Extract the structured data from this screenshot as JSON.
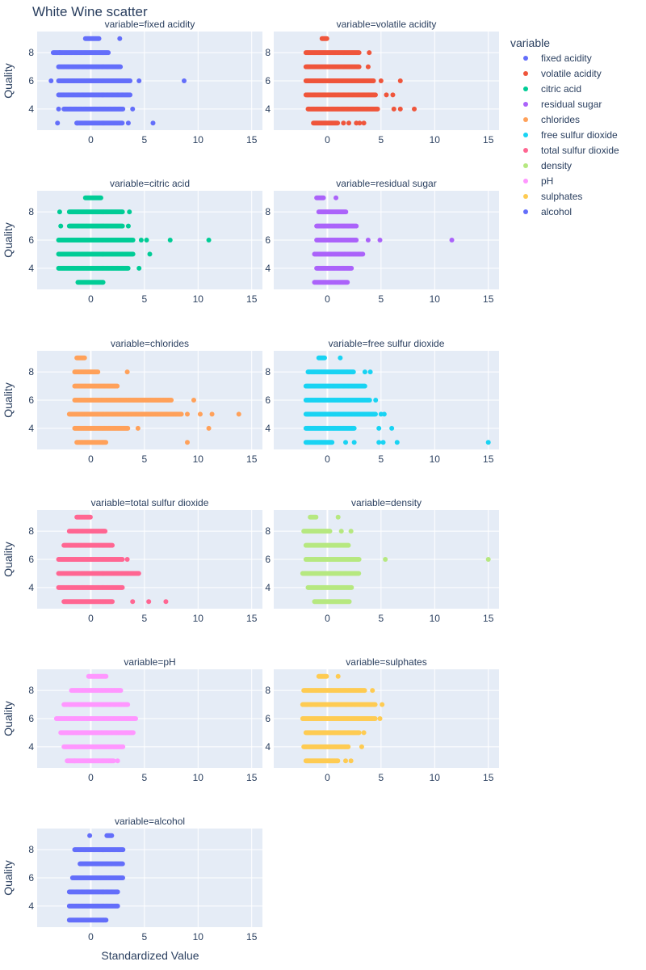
{
  "chart_data": {
    "type": "scatter",
    "title": "White Wine scatter",
    "xlabel": "Standardized Value",
    "ylabel": "Quality",
    "xlim": [
      -5,
      16
    ],
    "ylim": [
      2.5,
      9.5
    ],
    "x_ticks": [
      0,
      5,
      10,
      15
    ],
    "y_ticks": [
      4,
      6,
      8
    ],
    "grid": true,
    "legend": {
      "title": "variable",
      "placement": "right"
    },
    "facets": [
      {
        "subtitle": "variable=fixed acidity",
        "name": "fixed acidity",
        "color": "#636efa",
        "rows": [
          {
            "quality": 9,
            "min": -0.5,
            "max": 0.8,
            "outliers": [
              2.7
            ]
          },
          {
            "quality": 8,
            "min": -3.5,
            "max": 1.7,
            "outliers": [
              -2.9
            ]
          },
          {
            "quality": 7,
            "min": -3.0,
            "max": 2.8,
            "outliers": []
          },
          {
            "quality": 6,
            "min": -3.0,
            "max": 3.7,
            "outliers": [
              -3.7,
              4.5,
              8.7
            ]
          },
          {
            "quality": 5,
            "min": -3.0,
            "max": 3.7,
            "outliers": []
          },
          {
            "quality": 4,
            "min": -2.5,
            "max": 3.0,
            "outliers": [
              -3.0,
              3.9
            ]
          },
          {
            "quality": 3,
            "min": -1.3,
            "max": 3.0,
            "outliers": [
              -3.1,
              -1.3,
              3.5,
              5.8
            ]
          }
        ]
      },
      {
        "subtitle": "variable=volatile acidity",
        "name": "volatile acidity",
        "color": "#ef553b",
        "rows": [
          {
            "quality": 9,
            "min": -0.5,
            "max": 0.0,
            "outliers": []
          },
          {
            "quality": 8,
            "min": -2.0,
            "max": 3.0,
            "outliers": [
              3.9
            ]
          },
          {
            "quality": 7,
            "min": -2.0,
            "max": 3.0,
            "outliers": [
              3.8
            ]
          },
          {
            "quality": 6,
            "min": -2.0,
            "max": 4.3,
            "outliers": [
              5.0,
              6.8
            ]
          },
          {
            "quality": 5,
            "min": -2.0,
            "max": 4.5,
            "outliers": [
              5.5,
              6.1
            ]
          },
          {
            "quality": 4,
            "min": -1.8,
            "max": 4.7,
            "outliers": [
              6.2,
              6.8,
              8.1
            ]
          },
          {
            "quality": 3,
            "min": -1.3,
            "max": 1.0,
            "outliers": [
              1.5,
              2.0,
              2.7,
              3.0,
              3.4
            ]
          }
        ]
      },
      {
        "subtitle": "variable=citric acid",
        "name": "citric acid",
        "color": "#00cc96",
        "rows": [
          {
            "quality": 9,
            "min": -0.5,
            "max": 1.0,
            "outliers": []
          },
          {
            "quality": 8,
            "min": -2.0,
            "max": 3.0,
            "outliers": [
              -2.9,
              3.6
            ]
          },
          {
            "quality": 7,
            "min": -2.0,
            "max": 3.0,
            "outliers": [
              -2.8,
              3.5
            ]
          },
          {
            "quality": 6,
            "min": -3.0,
            "max": 4.0,
            "outliers": [
              4.7,
              5.2,
              7.4,
              11.0
            ]
          },
          {
            "quality": 5,
            "min": -3.0,
            "max": 4.0,
            "outliers": [
              5.5
            ]
          },
          {
            "quality": 4,
            "min": -3.0,
            "max": 3.5,
            "outliers": [
              4.5
            ]
          },
          {
            "quality": 3,
            "min": -1.2,
            "max": 1.2,
            "outliers": []
          }
        ]
      },
      {
        "subtitle": "variable=residual sugar",
        "name": "residual sugar",
        "color": "#ab63fa",
        "rows": [
          {
            "quality": 9,
            "min": -1.0,
            "max": -0.3,
            "outliers": [
              0.8
            ]
          },
          {
            "quality": 8,
            "min": -0.8,
            "max": 1.8,
            "outliers": []
          },
          {
            "quality": 7,
            "min": -1.0,
            "max": 2.7,
            "outliers": []
          },
          {
            "quality": 6,
            "min": -1.0,
            "max": 2.7,
            "outliers": [
              3.8,
              4.9,
              11.6
            ]
          },
          {
            "quality": 5,
            "min": -1.2,
            "max": 3.3,
            "outliers": []
          },
          {
            "quality": 4,
            "min": -1.0,
            "max": 2.3,
            "outliers": []
          },
          {
            "quality": 3,
            "min": -1.2,
            "max": 1.9,
            "outliers": []
          }
        ]
      },
      {
        "subtitle": "variable=chlorides",
        "name": "chlorides",
        "color": "#ffa15a",
        "rows": [
          {
            "quality": 9,
            "min": -1.3,
            "max": -0.5,
            "outliers": []
          },
          {
            "quality": 8,
            "min": -1.5,
            "max": 0.7,
            "outliers": [
              3.4
            ]
          },
          {
            "quality": 7,
            "min": -1.5,
            "max": 2.5,
            "outliers": []
          },
          {
            "quality": 6,
            "min": -1.5,
            "max": 7.5,
            "outliers": [
              9.6
            ]
          },
          {
            "quality": 5,
            "min": -2.0,
            "max": 8.5,
            "outliers": [
              9.0,
              10.2,
              11.3,
              13.8
            ]
          },
          {
            "quality": 4,
            "min": -1.5,
            "max": 3.5,
            "outliers": [
              4.4,
              11.0
            ]
          },
          {
            "quality": 3,
            "min": -1.3,
            "max": 1.4,
            "outliers": [
              9.0
            ]
          }
        ]
      },
      {
        "subtitle": "variable=free sulfur dioxide",
        "name": "free sulfur dioxide",
        "color": "#19d3f3",
        "rows": [
          {
            "quality": 9,
            "min": -0.8,
            "max": -0.2,
            "outliers": [
              1.2
            ]
          },
          {
            "quality": 8,
            "min": -1.8,
            "max": 2.5,
            "outliers": [
              3.5,
              4.0
            ]
          },
          {
            "quality": 7,
            "min": -2.0,
            "max": 3.5,
            "outliers": []
          },
          {
            "quality": 6,
            "min": -2.0,
            "max": 4.0,
            "outliers": [
              4.5
            ]
          },
          {
            "quality": 5,
            "min": -2.0,
            "max": 4.5,
            "outliers": [
              5.0,
              5.3
            ]
          },
          {
            "quality": 4,
            "min": -2.0,
            "max": 2.5,
            "outliers": [
              4.8,
              6.0
            ]
          },
          {
            "quality": 3,
            "min": -2.0,
            "max": 0.5,
            "outliers": [
              1.7,
              2.5,
              4.8,
              5.2,
              6.5,
              15.0
            ]
          }
        ]
      },
      {
        "subtitle": "variable=total sulfur dioxide",
        "name": "total sulfur dioxide",
        "color": "#ff6692",
        "rows": [
          {
            "quality": 9,
            "min": -1.3,
            "max": 0.0,
            "outliers": []
          },
          {
            "quality": 8,
            "min": -2.0,
            "max": 1.4,
            "outliers": []
          },
          {
            "quality": 7,
            "min": -2.5,
            "max": 2.0,
            "outliers": []
          },
          {
            "quality": 6,
            "min": -3.0,
            "max": 3.0,
            "outliers": [
              3.4
            ]
          },
          {
            "quality": 5,
            "min": -3.0,
            "max": 4.5,
            "outliers": []
          },
          {
            "quality": 4,
            "min": -3.0,
            "max": 3.0,
            "outliers": []
          },
          {
            "quality": 3,
            "min": -2.5,
            "max": 2.0,
            "outliers": [
              3.9,
              5.4,
              7.0
            ]
          }
        ]
      },
      {
        "subtitle": "variable=density",
        "name": "density",
        "color": "#b6e880",
        "rows": [
          {
            "quality": 9,
            "min": -1.6,
            "max": -1.0,
            "outliers": [
              1.0
            ]
          },
          {
            "quality": 8,
            "min": -2.2,
            "max": 0.3,
            "outliers": [
              1.3,
              2.2
            ]
          },
          {
            "quality": 7,
            "min": -2.0,
            "max": 2.0,
            "outliers": []
          },
          {
            "quality": 6,
            "min": -2.0,
            "max": 3.0,
            "outliers": [
              5.4,
              15.0
            ]
          },
          {
            "quality": 5,
            "min": -2.3,
            "max": 3.0,
            "outliers": []
          },
          {
            "quality": 4,
            "min": -1.8,
            "max": 2.3,
            "outliers": []
          },
          {
            "quality": 3,
            "min": -1.2,
            "max": 2.1,
            "outliers": []
          }
        ]
      },
      {
        "subtitle": "variable=pH",
        "name": "pH",
        "color": "#ff97ff",
        "rows": [
          {
            "quality": 9,
            "min": -0.2,
            "max": 1.5,
            "outliers": []
          },
          {
            "quality": 8,
            "min": -1.8,
            "max": 2.8,
            "outliers": []
          },
          {
            "quality": 7,
            "min": -2.5,
            "max": 3.5,
            "outliers": []
          },
          {
            "quality": 6,
            "min": -3.2,
            "max": 4.2,
            "outliers": []
          },
          {
            "quality": 5,
            "min": -2.8,
            "max": 4.0,
            "outliers": []
          },
          {
            "quality": 4,
            "min": -2.5,
            "max": 3.0,
            "outliers": []
          },
          {
            "quality": 3,
            "min": -2.2,
            "max": 2.2,
            "outliers": [
              -1.5,
              2.5
            ]
          }
        ]
      },
      {
        "subtitle": "variable=sulphates",
        "name": "sulphates",
        "color": "#fecb52",
        "rows": [
          {
            "quality": 9,
            "min": -0.8,
            "max": 0.0,
            "outliers": [
              1.0
            ]
          },
          {
            "quality": 8,
            "min": -2.2,
            "max": 3.5,
            "outliers": [
              4.2
            ]
          },
          {
            "quality": 7,
            "min": -2.3,
            "max": 4.5,
            "outliers": [
              5.1
            ]
          },
          {
            "quality": 6,
            "min": -2.3,
            "max": 4.5,
            "outliers": [
              4.9
            ]
          },
          {
            "quality": 5,
            "min": -2.0,
            "max": 3.0,
            "outliers": [
              3.4
            ]
          },
          {
            "quality": 4,
            "min": -2.2,
            "max": 2.0,
            "outliers": [
              3.2
            ]
          },
          {
            "quality": 3,
            "min": -2.0,
            "max": 1.0,
            "outliers": [
              1.7,
              2.2
            ]
          }
        ]
      },
      {
        "subtitle": "variable=alcohol",
        "name": "alcohol",
        "color": "#636efa",
        "rows": [
          {
            "quality": 9,
            "min": 1.5,
            "max": 2.0,
            "outliers": [
              -0.1
            ]
          },
          {
            "quality": 8,
            "min": -1.5,
            "max": 3.0,
            "outliers": []
          },
          {
            "quality": 7,
            "min": -1.0,
            "max": 3.0,
            "outliers": []
          },
          {
            "quality": 6,
            "min": -1.7,
            "max": 3.0,
            "outliers": []
          },
          {
            "quality": 5,
            "min": -2.0,
            "max": 2.5,
            "outliers": []
          },
          {
            "quality": 4,
            "min": -2.0,
            "max": 2.5,
            "outliers": []
          },
          {
            "quality": 3,
            "min": -2.0,
            "max": 1.5,
            "outliers": []
          }
        ]
      }
    ]
  }
}
